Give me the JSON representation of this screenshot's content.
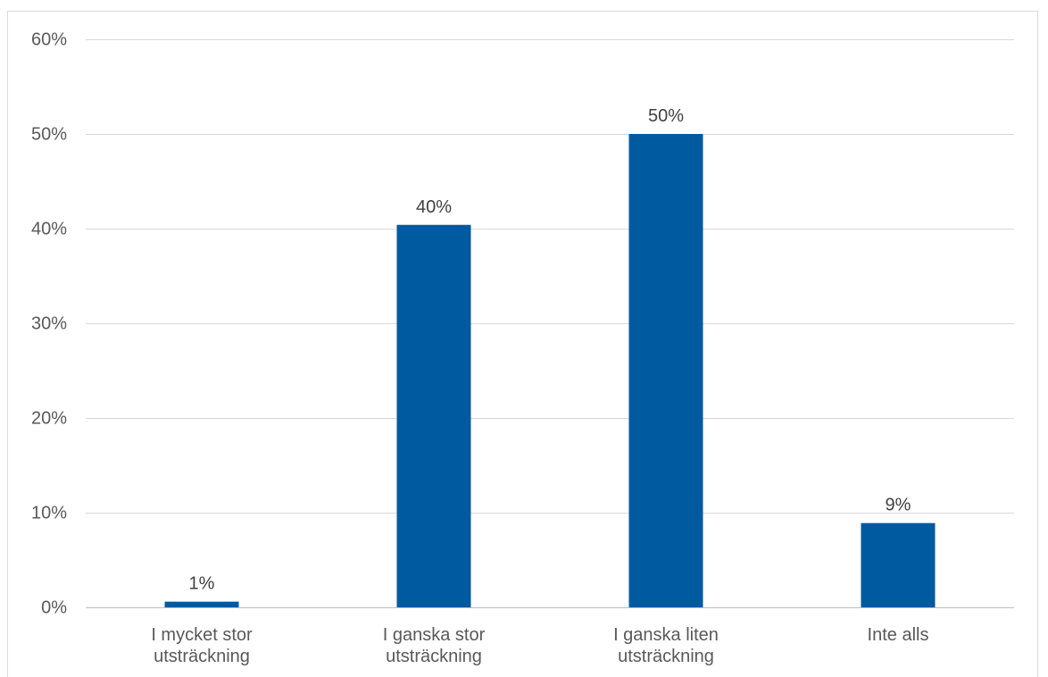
{
  "chart_data": {
    "type": "bar",
    "categories": [
      [
        "I mycket stor",
        "utsträckning"
      ],
      [
        "I ganska stor",
        "utsträckning"
      ],
      [
        "I ganska liten",
        "utsträckning"
      ],
      [
        "Inte alls"
      ]
    ],
    "values": [
      0.6,
      40.4,
      50.0,
      8.9
    ],
    "data_labels": [
      "1%",
      "40%",
      "50%",
      "9%"
    ],
    "yticks": [
      0,
      10,
      20,
      30,
      40,
      50,
      60
    ],
    "ytick_labels": [
      "0%",
      "10%",
      "20%",
      "30%",
      "40%",
      "50%",
      "60%"
    ],
    "ylim": [
      0,
      60
    ],
    "grid": true,
    "bar_color": "#005aa0",
    "grid_color": "#d9d9d9",
    "title": "",
    "xlabel": "",
    "ylabel": ""
  }
}
